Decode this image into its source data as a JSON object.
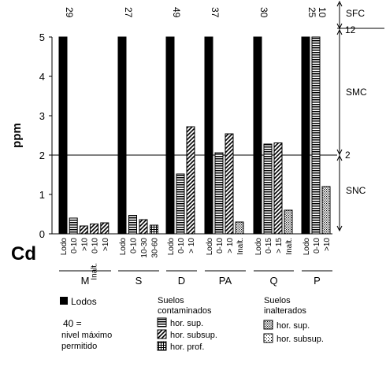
{
  "chart_data": {
    "type": "bar",
    "element_label": "Cd",
    "ylabel": "ppm",
    "ylim": [
      0,
      5
    ],
    "yticks": [
      "0",
      "1",
      "2",
      "3",
      "4",
      "5"
    ],
    "threshold": {
      "value": 2,
      "label": "2"
    },
    "zones": [
      {
        "key": "sfc",
        "label": "SFC"
      },
      {
        "key": "smc",
        "label": "SMC"
      },
      {
        "key": "snc",
        "label": "SNC"
      }
    ],
    "zone_boundary_label": "12",
    "groups": [
      {
        "name": "M",
        "bars": [
          {
            "label": "Lodo",
            "value": 5,
            "pattern": "solid",
            "clipped_value": "29"
          },
          {
            "label": "0-10",
            "value": 0.4,
            "pattern": "hlines"
          },
          {
            "label": ">10",
            "value": 0.2,
            "pattern": "diag"
          },
          {
            "label": "0-10",
            "value": 0.25,
            "pattern": "diag"
          },
          {
            "label": ">10",
            "value": 0.28,
            "pattern": "diag"
          }
        ],
        "extra_label": "Inalt."
      },
      {
        "name": "S",
        "bars": [
          {
            "label": "Lodo",
            "value": 5,
            "pattern": "solid",
            "clipped_value": "27"
          },
          {
            "label": "0-10",
            "value": 0.47,
            "pattern": "hlines"
          },
          {
            "label": "10-30",
            "value": 0.36,
            "pattern": "diag"
          },
          {
            "label": "30-60",
            "value": 0.22,
            "pattern": "grid"
          }
        ]
      },
      {
        "name": "D",
        "bars": [
          {
            "label": "Lodo",
            "value": 5,
            "pattern": "solid",
            "clipped_value": "49"
          },
          {
            "label": "0-10",
            "value": 1.52,
            "pattern": "hlines"
          },
          {
            "label": "> 10",
            "value": 2.72,
            "pattern": "diag"
          }
        ]
      },
      {
        "name": "PA",
        "bars": [
          {
            "label": "Lodo",
            "value": 5,
            "pattern": "solid",
            "clipped_value": "37"
          },
          {
            "label": "0-10",
            "value": 2.06,
            "pattern": "hlines"
          },
          {
            "label": "> 10",
            "value": 2.54,
            "pattern": "diag"
          },
          {
            "label": "Inalt.",
            "value": 0.3,
            "pattern": "dots"
          }
        ]
      },
      {
        "name": "Q",
        "bars": [
          {
            "label": "Lodo",
            "value": 5,
            "pattern": "solid",
            "clipped_value": "30"
          },
          {
            "label": "0-15",
            "value": 2.28,
            "pattern": "hlines"
          },
          {
            "label": "> 15",
            "value": 2.31,
            "pattern": "diag"
          },
          {
            "label": "Inalt.",
            "value": 0.6,
            "pattern": "dots"
          }
        ]
      },
      {
        "name": "P",
        "bars": [
          {
            "label": "Lodo",
            "value": 5,
            "pattern": "solid",
            "clipped_value": "25"
          },
          {
            "label": "0-10",
            "value": 5,
            "pattern": "hlines",
            "clipped_value": "10"
          },
          {
            "label": ">10",
            "value": 1.2,
            "pattern": "dots"
          }
        ]
      }
    ],
    "legend": {
      "lodos": "Lodos",
      "note_value": "40 =",
      "note_line1": "nivel máximo",
      "note_line2": "permitido",
      "contaminated_title_1": "Suelos",
      "contaminated_title_2": "contaminados",
      "contaminated_items": [
        {
          "pattern": "hlines",
          "label": "hor. sup."
        },
        {
          "pattern": "diag",
          "label": "hor. subsup."
        },
        {
          "pattern": "grid",
          "label": "hor. prof."
        }
      ],
      "unaltered_title_1": "Suelos",
      "unaltered_title_2": "inalterados",
      "unaltered_items": [
        {
          "pattern": "dots",
          "label": "hor. sup."
        },
        {
          "pattern": "dots_fine",
          "label": "hor. subsup."
        }
      ]
    }
  }
}
